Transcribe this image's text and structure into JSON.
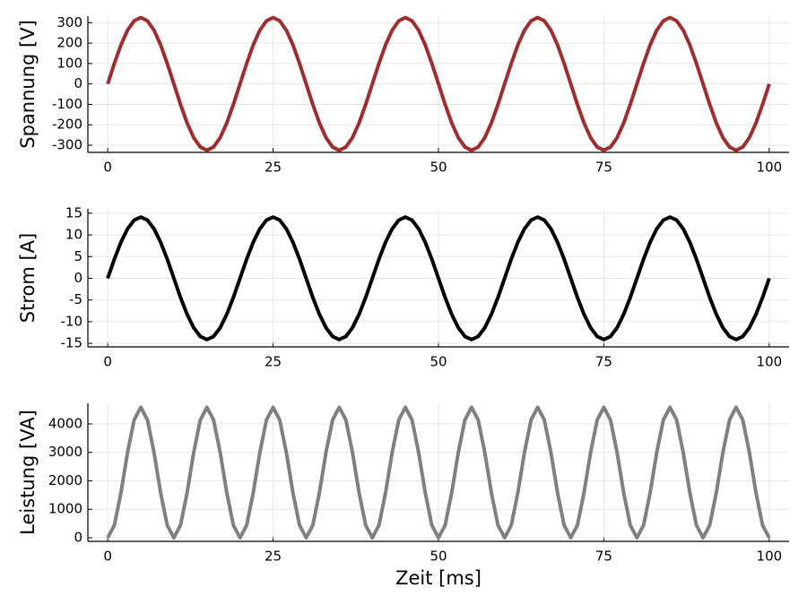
{
  "chart_data": [
    {
      "type": "line",
      "ylabel": "Spannung [V]",
      "x": [
        0,
        1,
        2,
        3,
        4,
        5,
        6,
        7,
        8,
        9,
        10,
        11,
        12,
        13,
        14,
        15,
        16,
        17,
        18,
        19,
        20,
        21,
        22,
        23,
        24,
        25,
        26,
        27,
        28,
        29,
        30,
        31,
        32,
        33,
        34,
        35,
        36,
        37,
        38,
        39,
        40,
        41,
        42,
        43,
        44,
        45,
        46,
        47,
        48,
        49,
        50,
        51,
        52,
        53,
        54,
        55,
        56,
        57,
        58,
        59,
        60,
        61,
        62,
        63,
        64,
        65,
        66,
        67,
        68,
        69,
        70,
        71,
        72,
        73,
        74,
        75,
        76,
        77,
        78,
        79,
        80,
        81,
        82,
        83,
        84,
        85,
        86,
        87,
        88,
        89,
        90,
        91,
        92,
        93,
        94,
        95,
        96,
        97,
        98,
        99,
        100
      ],
      "series": [
        {
          "color": "#9e2d2e",
          "values": [
            0,
            100,
            191,
            263,
            309,
            325,
            309,
            263,
            191,
            100,
            0,
            -100,
            -191,
            -263,
            -309,
            -325,
            -309,
            -263,
            -191,
            -100,
            0,
            100,
            191,
            263,
            309,
            325,
            309,
            263,
            191,
            100,
            0,
            -100,
            -191,
            -263,
            -309,
            -325,
            -309,
            -263,
            -191,
            -100,
            0,
            100,
            191,
            263,
            309,
            325,
            309,
            263,
            191,
            100,
            0,
            -100,
            -191,
            -263,
            -309,
            -325,
            -309,
            -263,
            -191,
            -100,
            0,
            100,
            191,
            263,
            309,
            325,
            309,
            263,
            191,
            100,
            0,
            -100,
            -191,
            -263,
            -309,
            -325,
            -309,
            -263,
            -191,
            -100,
            0,
            100,
            191,
            263,
            309,
            325,
            309,
            263,
            191,
            100,
            0,
            -100,
            -191,
            -263,
            -309,
            -325,
            -309,
            -263,
            -191,
            -100,
            0
          ]
        }
      ],
      "xlim": [
        -3,
        103
      ],
      "xticks": [
        0,
        25,
        50,
        75,
        100
      ],
      "ylim": [
        -335,
        332
      ],
      "yticks": [
        -300,
        -200,
        -100,
        0,
        100,
        200,
        300
      ],
      "grid": true
    },
    {
      "type": "line",
      "ylabel": "Strom [A]",
      "x": [
        0,
        1,
        2,
        3,
        4,
        5,
        6,
        7,
        8,
        9,
        10,
        11,
        12,
        13,
        14,
        15,
        16,
        17,
        18,
        19,
        20,
        21,
        22,
        23,
        24,
        25,
        26,
        27,
        28,
        29,
        30,
        31,
        32,
        33,
        34,
        35,
        36,
        37,
        38,
        39,
        40,
        41,
        42,
        43,
        44,
        45,
        46,
        47,
        48,
        49,
        50,
        51,
        52,
        53,
        54,
        55,
        56,
        57,
        58,
        59,
        60,
        61,
        62,
        63,
        64,
        65,
        66,
        67,
        68,
        69,
        70,
        71,
        72,
        73,
        74,
        75,
        76,
        77,
        78,
        79,
        80,
        81,
        82,
        83,
        84,
        85,
        86,
        87,
        88,
        89,
        90,
        91,
        92,
        93,
        94,
        95,
        96,
        97,
        98,
        99,
        100
      ],
      "series": [
        {
          "color": "#000000",
          "values": [
            0,
            4.4,
            8.3,
            11.4,
            13.4,
            14.1,
            13.4,
            11.4,
            8.3,
            4.4,
            0,
            -4.4,
            -8.3,
            -11.4,
            -13.4,
            -14.1,
            -13.4,
            -11.4,
            -8.3,
            -4.4,
            0,
            4.4,
            8.3,
            11.4,
            13.4,
            14.1,
            13.4,
            11.4,
            8.3,
            4.4,
            0,
            -4.4,
            -8.3,
            -11.4,
            -13.4,
            -14.1,
            -13.4,
            -11.4,
            -8.3,
            -4.4,
            0,
            4.4,
            8.3,
            11.4,
            13.4,
            14.1,
            13.4,
            11.4,
            8.3,
            4.4,
            0,
            -4.4,
            -8.3,
            -11.4,
            -13.4,
            -14.1,
            -13.4,
            -11.4,
            -8.3,
            -4.4,
            0,
            4.4,
            8.3,
            11.4,
            13.4,
            14.1,
            13.4,
            11.4,
            8.3,
            4.4,
            0,
            -4.4,
            -8.3,
            -11.4,
            -13.4,
            -14.1,
            -13.4,
            -11.4,
            -8.3,
            -4.4,
            0,
            4.4,
            8.3,
            11.4,
            13.4,
            14.1,
            13.4,
            11.4,
            8.3,
            4.4,
            0,
            -4.4,
            -8.3,
            -11.4,
            -13.4,
            -14.1,
            -13.4,
            -11.4,
            -8.3,
            -4.4,
            0
          ]
        }
      ],
      "xlim": [
        -3,
        103
      ],
      "xticks": [
        0,
        25,
        50,
        75,
        100
      ],
      "ylim": [
        -15.8,
        16
      ],
      "yticks": [
        -15,
        -10,
        -5,
        0,
        5,
        10,
        15
      ],
      "grid": true
    },
    {
      "type": "line",
      "ylabel": "Leistung [VA]",
      "xlabel": "Zeit [ms]",
      "x": [
        0,
        1,
        2,
        3,
        4,
        5,
        6,
        7,
        8,
        9,
        10,
        11,
        12,
        13,
        14,
        15,
        16,
        17,
        18,
        19,
        20,
        21,
        22,
        23,
        24,
        25,
        26,
        27,
        28,
        29,
        30,
        31,
        32,
        33,
        34,
        35,
        36,
        37,
        38,
        39,
        40,
        41,
        42,
        43,
        44,
        45,
        46,
        47,
        48,
        49,
        50,
        51,
        52,
        53,
        54,
        55,
        56,
        57,
        58,
        59,
        60,
        61,
        62,
        63,
        64,
        65,
        66,
        67,
        68,
        69,
        70,
        71,
        72,
        73,
        74,
        75,
        76,
        77,
        78,
        79,
        80,
        81,
        82,
        83,
        84,
        85,
        86,
        87,
        88,
        89,
        90,
        91,
        92,
        93,
        94,
        95,
        96,
        97,
        98,
        99,
        100
      ],
      "series": [
        {
          "color": "#808080",
          "values": [
            0,
            438,
            1583,
            2999,
            4145,
            4583,
            4145,
            2999,
            1583,
            438,
            0,
            438,
            1583,
            2999,
            4145,
            4583,
            4145,
            2999,
            1583,
            438,
            0,
            438,
            1583,
            2999,
            4145,
            4583,
            4145,
            2999,
            1583,
            438,
            0,
            438,
            1583,
            2999,
            4145,
            4583,
            4145,
            2999,
            1583,
            438,
            0,
            438,
            1583,
            2999,
            4145,
            4583,
            4145,
            2999,
            1583,
            438,
            0,
            438,
            1583,
            2999,
            4145,
            4583,
            4145,
            2999,
            1583,
            438,
            0,
            438,
            1583,
            2999,
            4145,
            4583,
            4145,
            2999,
            1583,
            438,
            0,
            438,
            1583,
            2999,
            4145,
            4583,
            4145,
            2999,
            1583,
            438,
            0,
            438,
            1583,
            2999,
            4145,
            4583,
            4145,
            2999,
            1583,
            438,
            0,
            438,
            1583,
            2999,
            4145,
            4583,
            4145,
            2999,
            1583,
            438,
            0
          ]
        }
      ],
      "xlim": [
        -3,
        103
      ],
      "xticks": [
        0,
        25,
        50,
        75,
        100
      ],
      "ylim": [
        -126,
        4724
      ],
      "yticks": [
        0,
        1000,
        2000,
        3000,
        4000
      ],
      "grid": true
    }
  ]
}
